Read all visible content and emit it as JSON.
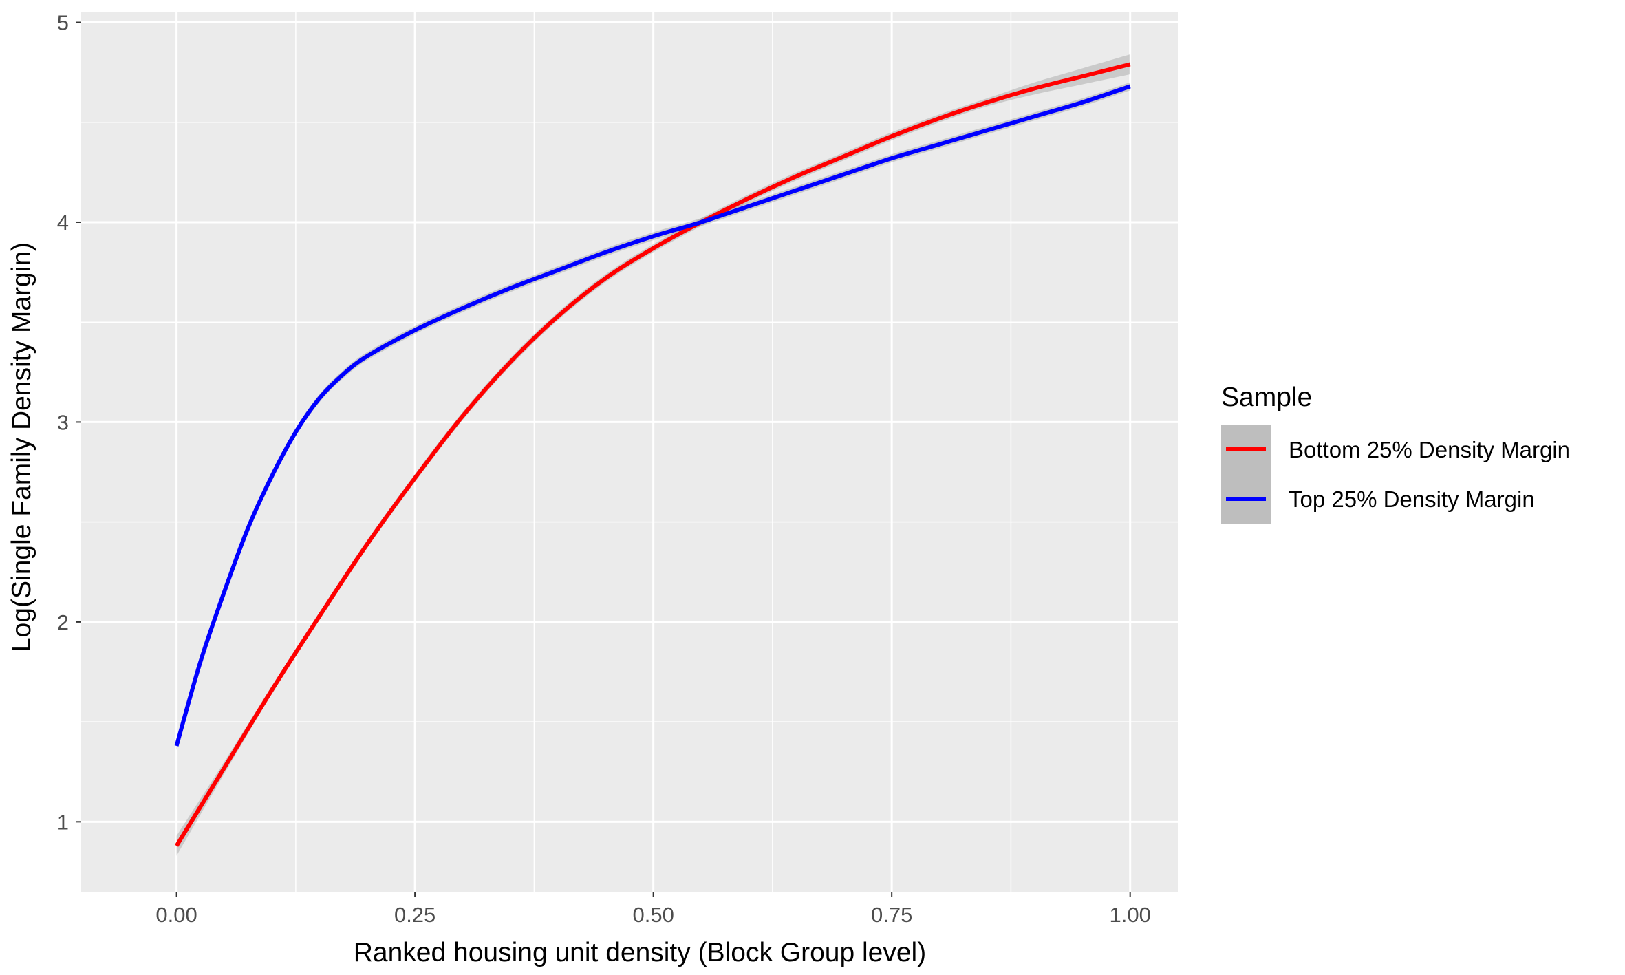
{
  "chart_data": {
    "type": "line",
    "xlabel": "Ranked housing unit density (Block Group level)",
    "ylabel": "Log(Single Family Density Margin)",
    "xlim": [
      -0.1,
      1.05
    ],
    "ylim": [
      0.65,
      5.05
    ],
    "x_ticks": [
      0.0,
      0.25,
      0.5,
      0.75,
      1.0
    ],
    "x_tick_labels": [
      "0.00",
      "0.25",
      "0.50",
      "0.75",
      "1.00"
    ],
    "y_ticks": [
      1,
      2,
      3,
      4,
      5
    ],
    "y_tick_labels": [
      "1",
      "2",
      "3",
      "4",
      "5"
    ],
    "grid": true,
    "confidence_band": true,
    "legend": {
      "title": "Sample",
      "placement": "right"
    },
    "series": [
      {
        "name": "Bottom 25% Density Margin",
        "color": "#ff0000",
        "x": [
          0,
          0.05,
          0.1,
          0.15,
          0.2,
          0.25,
          0.3,
          0.35,
          0.4,
          0.45,
          0.5,
          0.55,
          0.6,
          0.65,
          0.7,
          0.75,
          0.8,
          0.85,
          0.9,
          0.95,
          1.0
        ],
        "y": [
          0.88,
          1.27,
          1.66,
          2.03,
          2.39,
          2.72,
          3.03,
          3.3,
          3.53,
          3.72,
          3.87,
          4.0,
          4.12,
          4.23,
          4.33,
          4.43,
          4.52,
          4.6,
          4.67,
          4.73,
          4.79
        ],
        "band": [
          0.05,
          0.03,
          0.02,
          0.02,
          0.02,
          0.02,
          0.02,
          0.02,
          0.02,
          0.02,
          0.02,
          0.02,
          0.02,
          0.02,
          0.02,
          0.02,
          0.02,
          0.02,
          0.03,
          0.04,
          0.05
        ]
      },
      {
        "name": "Top 25% Density Margin",
        "color": "#0000ff",
        "x": [
          0,
          0.025,
          0.05,
          0.075,
          0.1,
          0.125,
          0.15,
          0.175,
          0.2,
          0.25,
          0.3,
          0.35,
          0.4,
          0.45,
          0.5,
          0.55,
          0.6,
          0.65,
          0.7,
          0.75,
          0.8,
          0.85,
          0.9,
          0.95,
          1.0
        ],
        "y": [
          1.38,
          1.8,
          2.15,
          2.47,
          2.73,
          2.95,
          3.12,
          3.24,
          3.33,
          3.46,
          3.57,
          3.67,
          3.76,
          3.85,
          3.93,
          4.0,
          4.08,
          4.16,
          4.24,
          4.32,
          4.39,
          4.46,
          4.53,
          4.6,
          4.68
        ]
      }
    ]
  }
}
